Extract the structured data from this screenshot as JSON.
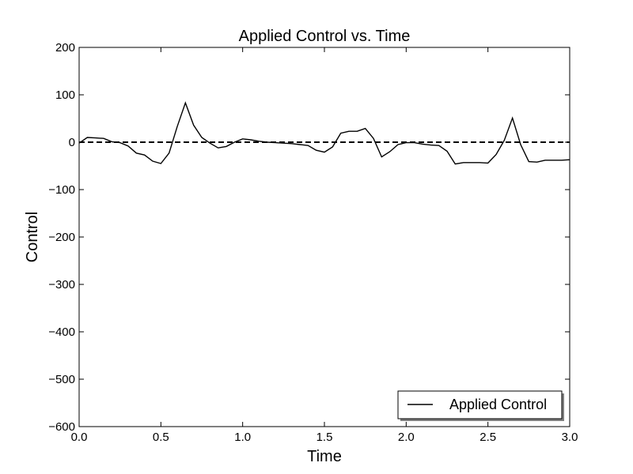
{
  "chart_data": {
    "type": "line",
    "title": "Applied Control vs. Time",
    "xlabel": "Time",
    "ylabel": "Control",
    "xlim": [
      0.0,
      3.0
    ],
    "ylim": [
      -600,
      200
    ],
    "x_ticks": [
      "0.0",
      "0.5",
      "1.0",
      "1.5",
      "2.0",
      "2.5",
      "3.0"
    ],
    "y_ticks": [
      "200",
      "100",
      "0",
      "−100",
      "−200",
      "−300",
      "−400",
      "−500",
      "−600"
    ],
    "grid": false,
    "legend_position": "lower-right",
    "reference_line": {
      "y": 0,
      "style": "dashed",
      "color": "#000000"
    },
    "series": [
      {
        "name": "Applied Control",
        "color": "#000000",
        "x": [
          0.0,
          0.05,
          0.1,
          0.15,
          0.2,
          0.25,
          0.3,
          0.35,
          0.4,
          0.45,
          0.5,
          0.55,
          0.6,
          0.65,
          0.7,
          0.75,
          0.8,
          0.85,
          0.9,
          0.95,
          1.0,
          1.05,
          1.1,
          1.15,
          1.2,
          1.25,
          1.3,
          1.35,
          1.4,
          1.45,
          1.5,
          1.55,
          1.6,
          1.65,
          1.7,
          1.75,
          1.8,
          1.85,
          1.9,
          1.95,
          2.0,
          2.05,
          2.1,
          2.15,
          2.2,
          2.25,
          2.3,
          2.35,
          2.4,
          2.45,
          2.5,
          2.55,
          2.6,
          2.65,
          2.7,
          2.75,
          2.8,
          2.85,
          2.9,
          2.95,
          3.0
        ],
        "values": [
          -2,
          10,
          9,
          8,
          1,
          -1,
          -8,
          -23,
          -27,
          -40,
          -45,
          -23,
          33,
          83,
          36,
          10,
          -2,
          -12,
          -9,
          0,
          7,
          5,
          2,
          0,
          -1,
          -2,
          -3,
          -5,
          -7,
          -17,
          -21,
          -10,
          19,
          23,
          23,
          29,
          8,
          -31,
          -20,
          -5,
          -1,
          -1,
          -4,
          -6,
          -7,
          -19,
          -46,
          -43,
          -43,
          -43,
          -44,
          -26,
          4,
          51,
          -5,
          -41,
          -42,
          -38,
          -38,
          -38,
          -37
        ]
      }
    ]
  }
}
